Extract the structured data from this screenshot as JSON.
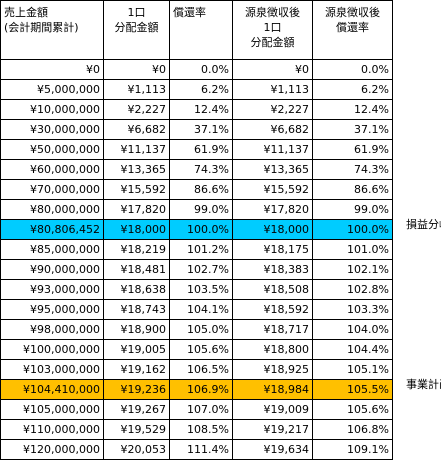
{
  "headers": [
    [
      "売上金額",
      "(会計期間累計)"
    ],
    [
      "1口",
      "分配金額"
    ],
    [
      "償還率"
    ],
    [
      "源泉徴収後",
      "1口",
      "分配金額"
    ],
    [
      "源泉徴収後",
      "償還率"
    ]
  ],
  "rows": [
    [
      "¥0",
      "¥0",
      "0.0%",
      "¥0",
      "0.0%"
    ],
    [
      "¥5,000,000",
      "¥1,113",
      "6.2%",
      "¥1,113",
      "6.2%"
    ],
    [
      "¥10,000,000",
      "¥2,227",
      "12.4%",
      "¥2,227",
      "12.4%"
    ],
    [
      "¥30,000,000",
      "¥6,682",
      "37.1%",
      "¥6,682",
      "37.1%"
    ],
    [
      "¥50,000,000",
      "¥11,137",
      "61.9%",
      "¥11,137",
      "61.9%"
    ],
    [
      "¥60,000,000",
      "¥13,365",
      "74.3%",
      "¥13,365",
      "74.3%"
    ],
    [
      "¥70,000,000",
      "¥15,592",
      "86.6%",
      "¥15,592",
      "86.6%"
    ],
    [
      "¥80,000,000",
      "¥17,820",
      "99.0%",
      "¥17,820",
      "99.0%"
    ],
    [
      "¥80,806,452",
      "¥18,000",
      "100.0%",
      "¥18,000",
      "100.0%"
    ],
    [
      "¥85,000,000",
      "¥18,219",
      "101.2%",
      "¥18,175",
      "101.0%"
    ],
    [
      "¥90,000,000",
      "¥18,481",
      "102.7%",
      "¥18,383",
      "102.1%"
    ],
    [
      "¥93,000,000",
      "¥18,638",
      "103.5%",
      "¥18,508",
      "102.8%"
    ],
    [
      "¥95,000,000",
      "¥18,743",
      "104.1%",
      "¥18,592",
      "103.3%"
    ],
    [
      "¥98,000,000",
      "¥18,900",
      "105.0%",
      "¥18,717",
      "104.0%"
    ],
    [
      "¥100,000,000",
      "¥19,005",
      "105.6%",
      "¥18,800",
      "104.4%"
    ],
    [
      "¥103,000,000",
      "¥19,162",
      "106.5%",
      "¥18,925",
      "105.1%"
    ],
    [
      "¥104,410,000",
      "¥19,236",
      "106.9%",
      "¥18,984",
      "105.5%"
    ],
    [
      "¥105,000,000",
      "¥19,267",
      "107.0%",
      "¥19,009",
      "105.6%"
    ],
    [
      "¥110,000,000",
      "¥19,529",
      "108.5%",
      "¥19,217",
      "106.8%"
    ],
    [
      "¥120,000,000",
      "¥20,053",
      "111.4%",
      "¥19,634",
      "109.1%"
    ]
  ],
  "highlights": {
    "break_even_row": 8,
    "plan_row": 16
  },
  "labels": {
    "break_even": "損益分岐",
    "plan": "事業計画"
  },
  "colors": {
    "break_even": "#00ccff",
    "plan": "#ffc000"
  }
}
